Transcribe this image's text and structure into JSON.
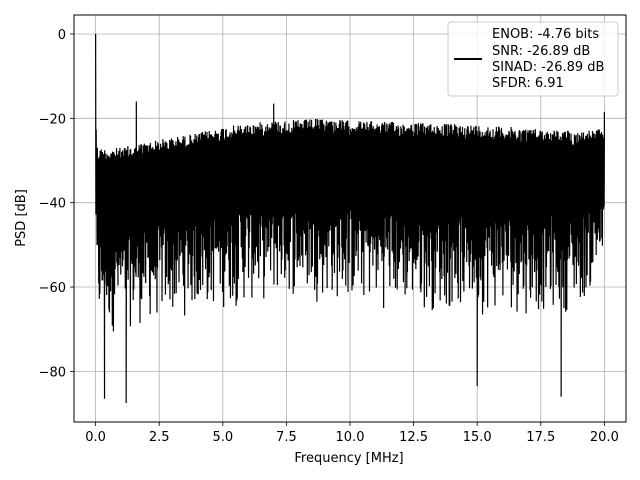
{
  "chart_data": {
    "type": "line",
    "title": "",
    "xlabel": "Frequency [MHz]",
    "ylabel": "PSD [dB]",
    "xlim": [
      -0.85,
      20.85
    ],
    "ylim": [
      -92,
      4.5
    ],
    "xticks": [
      0.0,
      2.5,
      5.0,
      7.5,
      10.0,
      12.5,
      15.0,
      17.5,
      20.0
    ],
    "xtick_labels": [
      "0.0",
      "2.5",
      "5.0",
      "7.5",
      "10.0",
      "12.5",
      "15.0",
      "17.5",
      "20.0"
    ],
    "yticks": [
      0,
      -20,
      -40,
      -60,
      -80
    ],
    "ytick_labels": [
      "0",
      "−20",
      "−40",
      "−60",
      "−80"
    ],
    "grid": true,
    "line_color": "#000000",
    "legend": {
      "position": "top-right",
      "entries": [
        "ENOB: -4.76 bits",
        "SNR: -26.89 dB",
        "SINAD: -26.89 dB",
        "SFDR: 6.91"
      ]
    },
    "series": [
      {
        "style": "dense noise spectrum",
        "x": [
          0.0,
          0.02,
          0.05,
          0.1,
          0.5,
          1.0,
          1.6,
          2.5,
          4.0,
          5.0,
          7.0,
          7.5,
          9.0,
          10.0,
          12.5,
          15.0,
          17.5,
          19.0,
          20.0
        ],
        "upper_envelope": [
          0,
          -20,
          -26,
          -27,
          -27,
          -27,
          -26,
          -25,
          -23.5,
          -22,
          -20.5,
          -20.5,
          -20,
          -20.5,
          -21,
          -21.5,
          -22.5,
          -23,
          -22.5
        ],
        "lower_envelope": [
          -45,
          -62,
          -68,
          -72,
          -72,
          -71,
          -70,
          -69,
          -67,
          -66,
          -64,
          -63,
          -64,
          -65,
          -66,
          -67,
          -67,
          -66,
          -57
        ]
      }
    ],
    "peaks": [
      {
        "x": 0.0,
        "y": 0
      },
      {
        "x": 1.6,
        "y": -16
      },
      {
        "x": 7.0,
        "y": -16.5
      },
      {
        "x": 20.0,
        "y": -18.5
      }
    ],
    "dips": [
      {
        "x": 0.35,
        "y": -86.5
      },
      {
        "x": 1.2,
        "y": -87.5
      },
      {
        "x": 15.0,
        "y": -83.5
      },
      {
        "x": 18.3,
        "y": -86
      }
    ]
  }
}
